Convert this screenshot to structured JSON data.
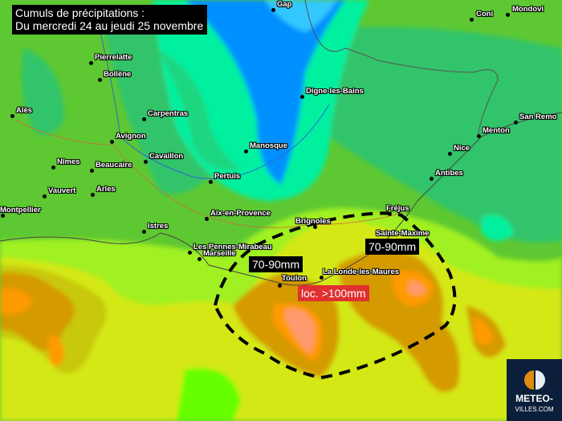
{
  "title": {
    "line1": "Cumuls de précipitations :",
    "line2": "Du mercredi 24 au jeudi 25 novembre"
  },
  "cities": [
    "Gap",
    "Coni",
    "Mondovi",
    "Pierrelatte",
    "Bollène",
    "Alès",
    "Carpentras",
    "Avignon",
    "Cavaillon",
    "Nîmes",
    "Beaucaire",
    "Vauvert",
    "Arles",
    "Montpellier",
    "Manosque",
    "Digne-les-Bains",
    "Pertuis",
    "Menton",
    "San Remo",
    "Nice",
    "Antibes",
    "Aix-en-Provence",
    "Istres",
    "Les Pennes-Mirabeau",
    "Marseille",
    "Brignoles",
    "Fréjus",
    "Sainte-Maxime",
    "La Londe-les-Maures",
    "Toulon"
  ],
  "annotations": {
    "west": "70-90mm",
    "east": "70-90mm",
    "local": "loc. >100mm"
  },
  "logo": {
    "line1": "METEO-",
    "line2": "VILLES.COM"
  },
  "colors": {
    "base": "#5ec832",
    "blue": "#0090ff",
    "cyan": "#00f0a0",
    "yellow": "#d4e812",
    "orange": "#ff9a00",
    "salmon": "#ff9a70",
    "highlight": "#e03030"
  }
}
